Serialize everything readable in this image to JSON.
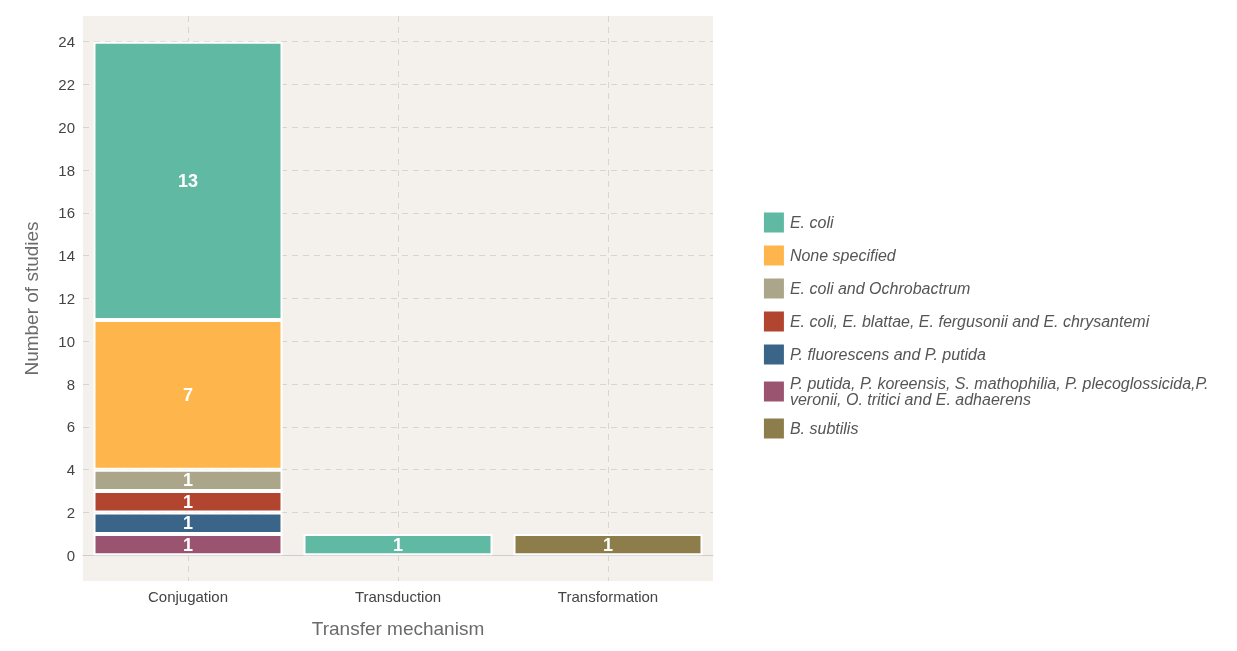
{
  "chart_data": {
    "type": "bar",
    "stacked": true,
    "xlabel": "Transfer mechanism",
    "ylabel": "Number of studies",
    "categories": [
      "Conjugation",
      "Transduction",
      "Transformation"
    ],
    "series": [
      {
        "name": "B. subtilis",
        "color": "#8c7d4b",
        "values": [
          null,
          null,
          1
        ]
      },
      {
        "name": "P. putida, P. koreensis, S. mathophilia, P. plecoglossicida,P. veronii, O. tritici and E. adhaerens",
        "color": "#9b546f",
        "values": [
          1,
          null,
          null
        ]
      },
      {
        "name": "P. fluorescens and P. putida",
        "color": "#3a6589",
        "values": [
          1,
          null,
          null
        ]
      },
      {
        "name": "E. coli, E. blattae, E. fergusonii and E. chrysantemi",
        "color": "#b2452f",
        "values": [
          1,
          null,
          null
        ]
      },
      {
        "name": "E. coli and Ochrobactrum",
        "color": "#aba58a",
        "values": [
          1,
          null,
          null
        ]
      },
      {
        "name": "None specified",
        "color": "#fdb54c",
        "values": [
          7,
          null,
          null
        ]
      },
      {
        "name": "E. coli",
        "color": "#5fb9a3",
        "values": [
          13,
          1,
          null
        ]
      }
    ],
    "ylim": [
      -1.2,
      25.2
    ],
    "yticks": [
      0,
      2,
      4,
      6,
      8,
      10,
      12,
      14,
      16,
      18,
      20,
      22,
      24
    ],
    "grid": true,
    "legend": "right",
    "data_labels": true
  }
}
